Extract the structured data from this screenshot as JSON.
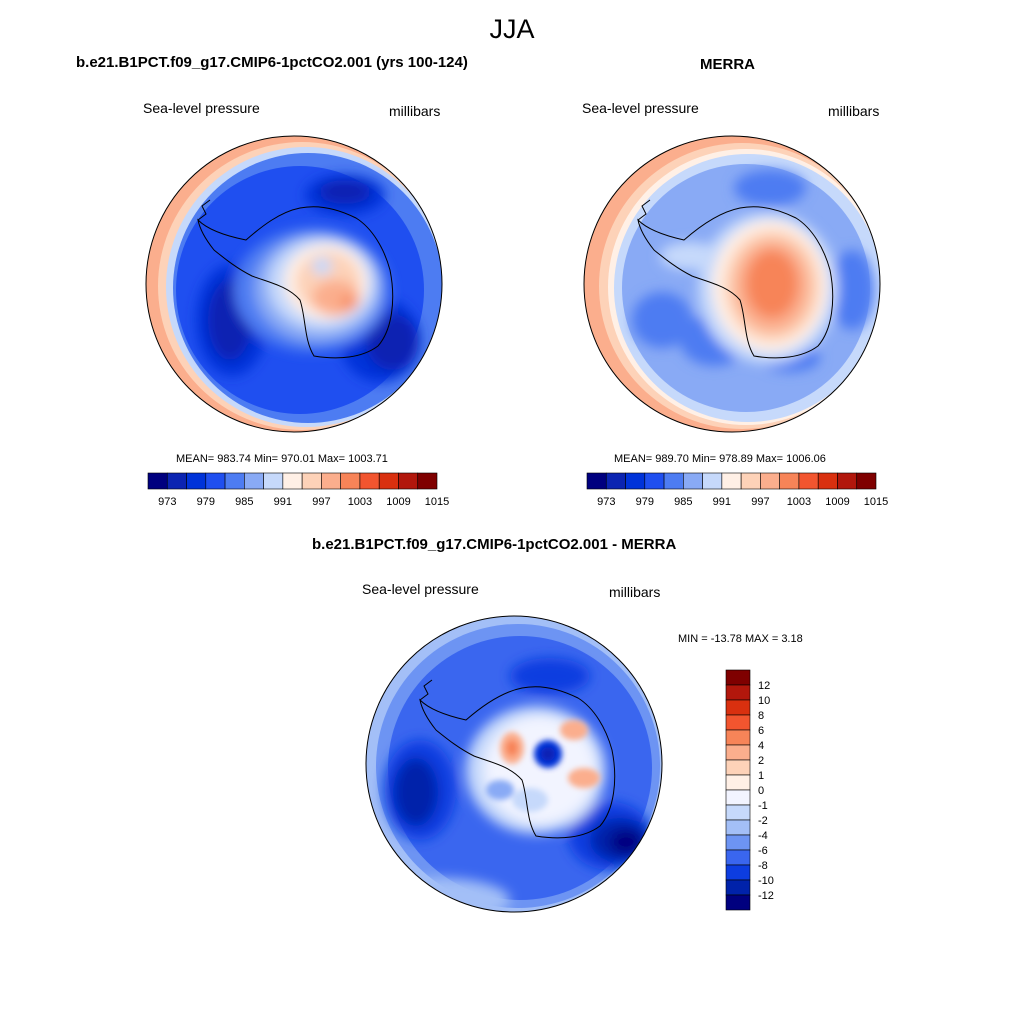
{
  "figure_title": "JJA",
  "panels": [
    {
      "title": "b.e21.B1PCT.f09_g17.CMIP6-1pctCO2.001 (yrs 100-124)",
      "left_label": "Sea-level pressure",
      "right_label": "millibars",
      "stats": "MEAN= 983.74  Min= 970.01  Max= 1003.71",
      "colorbar_ticks": [
        "973",
        "979",
        "985",
        "991",
        "997",
        "1003",
        "1009",
        "1015"
      ]
    },
    {
      "title": "MERRA",
      "left_label": "Sea-level pressure",
      "right_label": "millibars",
      "stats": "MEAN= 989.70  Min= 978.89  Max= 1006.06",
      "colorbar_ticks": [
        "973",
        "979",
        "985",
        "991",
        "997",
        "1003",
        "1009",
        "1015"
      ]
    },
    {
      "title": "b.e21.B1PCT.f09_g17.CMIP6-1pctCO2.001 - MERRA",
      "left_label": "Sea-level pressure",
      "right_label": "millibars",
      "stats": "MIN = -13.78 MAX =   3.18",
      "colorbar_ticks": [
        "12",
        "10",
        "8",
        "6",
        "4",
        "2",
        "1",
        "0",
        "-1",
        "-2",
        "-4",
        "-6",
        "-8",
        "-10",
        "-12"
      ]
    }
  ],
  "colors": {
    "abs_scale": [
      "#00007f",
      "#0b24b2",
      "#0033d9",
      "#1f4ff0",
      "#4d7cf2",
      "#89aaf5",
      "#c6d9fb",
      "#fff0e6",
      "#fdd2b8",
      "#fbae8d",
      "#f78458",
      "#f2552f",
      "#d9300f",
      "#b2170c",
      "#7f0000"
    ],
    "diff_scale": [
      "#7f0000",
      "#b2170c",
      "#d9300f",
      "#f2552f",
      "#f78458",
      "#fbae8d",
      "#fdd2b8",
      "#fff0e6",
      "#f2f4ff",
      "#c6d9fb",
      "#a3bff7",
      "#6d94f3",
      "#3a66ef",
      "#0d3de0",
      "#0022aa",
      "#00007f"
    ]
  }
}
